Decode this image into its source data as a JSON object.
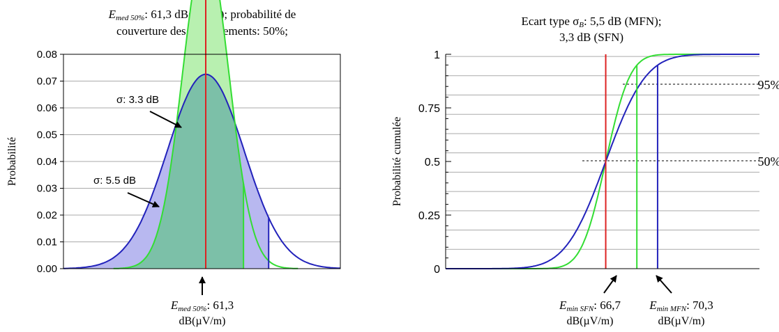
{
  "left_chart": {
    "title_line1_var": "E",
    "title_line1_sub": "med 50%",
    "title_line1_rest": ": 61,3 dB(µV/m); probabilité de",
    "title_line2": "couverture des emplacements: 50%;",
    "ylabel": "Probabilité",
    "yticks": [
      "0.08",
      "0.07",
      "0.06",
      "0.05",
      "0.04",
      "0.03",
      "0.02",
      "0.01",
      "0.00"
    ],
    "annotation_sfn": "σ:  3.3 dB",
    "annotation_mfn": "σ:  5.5 dB",
    "bottom_label_var": "E",
    "bottom_label_sub": "med 50%",
    "bottom_label_rest": ": 61,3",
    "bottom_label_unit": "dB(µV/m)"
  },
  "right_chart": {
    "title_line1_pre": "Ecart type σ",
    "title_line1_sub": "B",
    "title_line1_rest": ": 5,5 dB (MFN);",
    "title_line2": "3,3 dB (SFN)",
    "ylabel": "Probabilité cumulée",
    "yticks": [
      "1",
      "0.75",
      "0.5",
      "0.25",
      "0"
    ],
    "right_label_95": "95%",
    "right_label_50": "50%",
    "label_sfn_var": "E",
    "label_sfn_sub": "min SFN",
    "label_sfn_rest": ": 66,7",
    "label_sfn_unit": "dB(µV/m)",
    "label_mfn_var": "E",
    "label_mfn_sub": "min MFN",
    "label_mfn_rest": ": 70,3",
    "label_mfn_unit": "dB(µV/m)"
  },
  "colors": {
    "sfn": "#33dd33",
    "mfn": "#2222bb",
    "median": "#dd2222",
    "sfn_fill": "#b8f0b0",
    "mfn_fill": "#b8b8f0",
    "overlap_fill": "#7cc0a8",
    "grid": "#aaaaaa"
  },
  "chart_data": [
    {
      "type": "area",
      "series": [
        {
          "name": "σ: 3.3 dB",
          "mean": 61.3,
          "sigma": 3.3,
          "fill_to": 66.7
        },
        {
          "name": "σ: 5.5 dB",
          "mean": 61.3,
          "sigma": 5.5,
          "fill_to": 70.3
        }
      ],
      "ylabel": "Probabilité",
      "ylim": [
        0,
        0.08
      ],
      "median": 61.3,
      "grid": true
    },
    {
      "type": "line",
      "series": [
        {
          "name": "SFN",
          "mean": 61.3,
          "sigma": 3.3,
          "marker_x": 66.7
        },
        {
          "name": "MFN",
          "mean": 61.3,
          "sigma": 5.5,
          "marker_x": 70.3
        }
      ],
      "ylabel": "Probabilité cumulée",
      "ylim": [
        0,
        1
      ],
      "median": 61.3,
      "reference_levels": [
        0.5,
        0.95
      ],
      "grid": true
    }
  ]
}
